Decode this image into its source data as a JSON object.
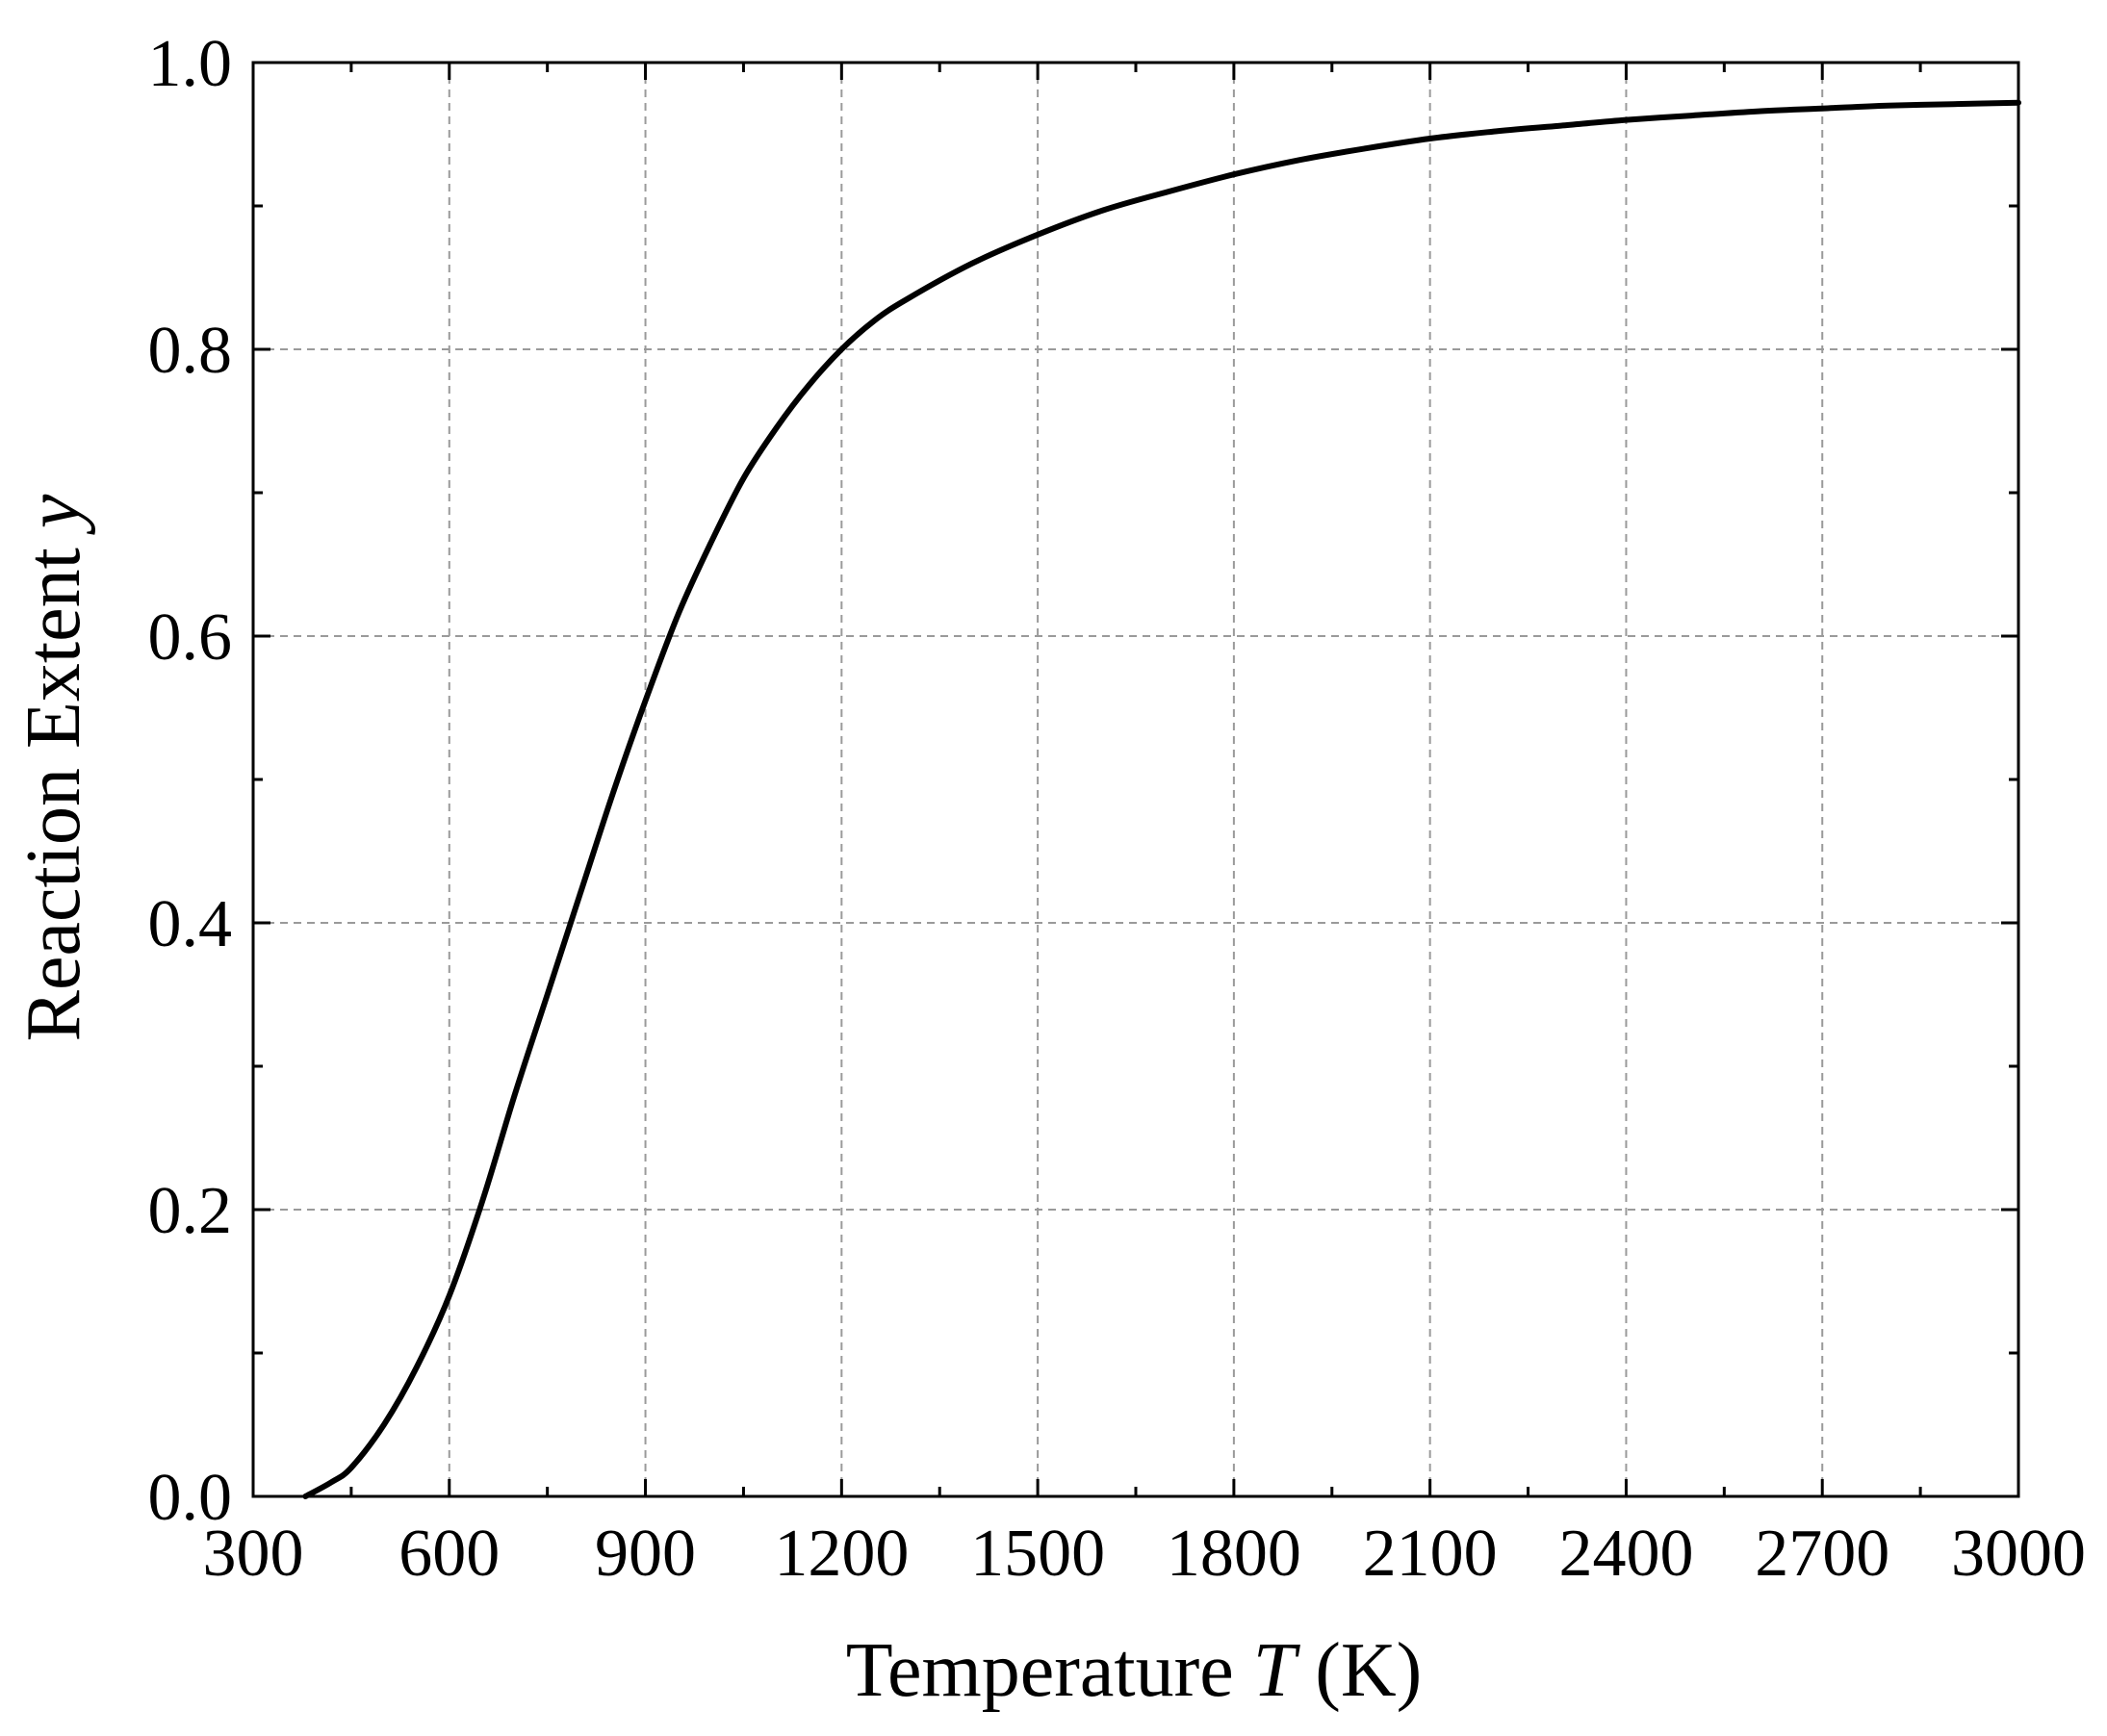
{
  "chart_data": {
    "type": "line",
    "xlabel": {
      "prefix": "Temperature ",
      "var": "T",
      "suffix": " (K)"
    },
    "ylabel": {
      "prefix": "Reaction Extent ",
      "var": "y"
    },
    "xlim": [
      300,
      3000
    ],
    "ylim": [
      0.0,
      1.0
    ],
    "x_ticks": [
      300,
      600,
      900,
      1200,
      1500,
      1800,
      2100,
      2400,
      2700,
      3000
    ],
    "x_tick_labels": [
      "300",
      "600",
      "900",
      "1200",
      "1500",
      "1800",
      "2100",
      "2400",
      "2700",
      "3000"
    ],
    "x_minor_step": 150,
    "y_ticks": [
      0.0,
      0.2,
      0.4,
      0.6,
      0.8,
      1.0
    ],
    "y_tick_labels": [
      "0.0",
      "0.2",
      "0.4",
      "0.6",
      "0.8",
      "1.0"
    ],
    "y_minor_step": 0.1,
    "grid": true,
    "series": [
      {
        "x": [
          380,
          420,
          450,
          500,
          550,
          600,
          650,
          700,
          750,
          800,
          850,
          900,
          950,
          1000,
          1050,
          1100,
          1150,
          1200,
          1250,
          1300,
          1400,
          1500,
          1600,
          1700,
          1800,
          1900,
          2000,
          2100,
          2200,
          2300,
          2400,
          2500,
          2600,
          2700,
          2800,
          2900,
          3000
        ],
        "y": [
          0.0,
          0.01,
          0.02,
          0.05,
          0.09,
          0.14,
          0.205,
          0.28,
          0.35,
          0.42,
          0.49,
          0.555,
          0.615,
          0.665,
          0.71,
          0.745,
          0.775,
          0.8,
          0.82,
          0.835,
          0.86,
          0.88,
          0.897,
          0.91,
          0.922,
          0.932,
          0.94,
          0.947,
          0.952,
          0.956,
          0.96,
          0.963,
          0.966,
          0.968,
          0.97,
          0.971,
          0.972
        ]
      }
    ]
  }
}
